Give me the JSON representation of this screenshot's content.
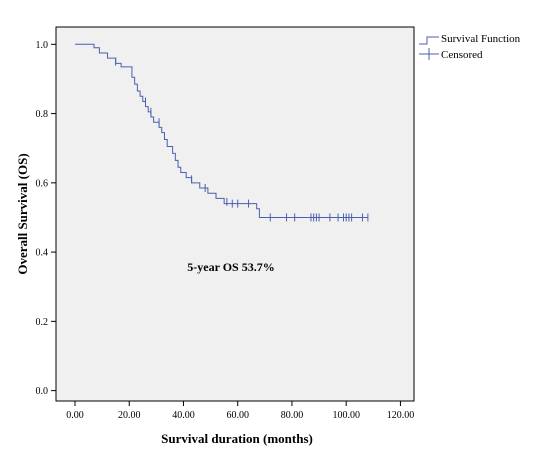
{
  "chart_data": {
    "type": "line",
    "title": "",
    "xlabel": "Survival duration (months)",
    "ylabel": "Overall Survival (OS)",
    "xlim": [
      -7,
      125
    ],
    "ylim": [
      -0.03,
      1.05
    ],
    "x_ticks": [
      "0.00",
      "20.00",
      "40.00",
      "60.00",
      "80.00",
      "100.00",
      "120.00"
    ],
    "x_tick_values": [
      0,
      20,
      40,
      60,
      80,
      100,
      120
    ],
    "y_ticks": [
      "0.0",
      "0.2",
      "0.4",
      "0.6",
      "0.8",
      "1.0"
    ],
    "y_tick_values": [
      0,
      0.2,
      0.4,
      0.6,
      0.8,
      1.0
    ],
    "grid": false,
    "legend_position": "top-right, outside plot",
    "colors": {
      "line": "#4a5fb0",
      "plot_bg": "#f0f0f0"
    },
    "annotation": "5-year OS 53.7%",
    "series": [
      {
        "name": "Survival Function",
        "type": "step",
        "points": [
          [
            0,
            1.0
          ],
          [
            7,
            1.0
          ],
          [
            7,
            0.99
          ],
          [
            9,
            0.99
          ],
          [
            9,
            0.975
          ],
          [
            12,
            0.975
          ],
          [
            12,
            0.96
          ],
          [
            15,
            0.96
          ],
          [
            15,
            0.945
          ],
          [
            17,
            0.945
          ],
          [
            17,
            0.935
          ],
          [
            21,
            0.935
          ],
          [
            21,
            0.905
          ],
          [
            22,
            0.905
          ],
          [
            22,
            0.885
          ],
          [
            23,
            0.885
          ],
          [
            23,
            0.865
          ],
          [
            24,
            0.865
          ],
          [
            24,
            0.85
          ],
          [
            25,
            0.85
          ],
          [
            25,
            0.835
          ],
          [
            26,
            0.835
          ],
          [
            26,
            0.82
          ],
          [
            27,
            0.82
          ],
          [
            27,
            0.805
          ],
          [
            28,
            0.805
          ],
          [
            28,
            0.79
          ],
          [
            29,
            0.79
          ],
          [
            29,
            0.775
          ],
          [
            31,
            0.775
          ],
          [
            31,
            0.76
          ],
          [
            32,
            0.76
          ],
          [
            32,
            0.745
          ],
          [
            33,
            0.745
          ],
          [
            33,
            0.725
          ],
          [
            34,
            0.725
          ],
          [
            34,
            0.705
          ],
          [
            36,
            0.705
          ],
          [
            36,
            0.685
          ],
          [
            37,
            0.685
          ],
          [
            37,
            0.665
          ],
          [
            38,
            0.665
          ],
          [
            38,
            0.645
          ],
          [
            39,
            0.645
          ],
          [
            39,
            0.63
          ],
          [
            41,
            0.63
          ],
          [
            41,
            0.615
          ],
          [
            43,
            0.615
          ],
          [
            43,
            0.6
          ],
          [
            46,
            0.6
          ],
          [
            46,
            0.585
          ],
          [
            49,
            0.585
          ],
          [
            49,
            0.57
          ],
          [
            52,
            0.57
          ],
          [
            52,
            0.555
          ],
          [
            55,
            0.555
          ],
          [
            55,
            0.54
          ],
          [
            67,
            0.54
          ],
          [
            67,
            0.525
          ],
          [
            68,
            0.525
          ],
          [
            68,
            0.5
          ],
          [
            108,
            0.5
          ]
        ]
      },
      {
        "name": "Censored",
        "type": "marker",
        "marker": "+",
        "points": [
          [
            15,
            0.95
          ],
          [
            26,
            0.835
          ],
          [
            28,
            0.805
          ],
          [
            31,
            0.775
          ],
          [
            43,
            0.61
          ],
          [
            48,
            0.585
          ],
          [
            56,
            0.545
          ],
          [
            58,
            0.54
          ],
          [
            60,
            0.54
          ],
          [
            64,
            0.54
          ],
          [
            72,
            0.5
          ],
          [
            78,
            0.5
          ],
          [
            81,
            0.5
          ],
          [
            87,
            0.5
          ],
          [
            88,
            0.5
          ],
          [
            89,
            0.5
          ],
          [
            90,
            0.5
          ],
          [
            94,
            0.5
          ],
          [
            97,
            0.5
          ],
          [
            99,
            0.5
          ],
          [
            100,
            0.5
          ],
          [
            101,
            0.5
          ],
          [
            102,
            0.5
          ],
          [
            106,
            0.5
          ],
          [
            108,
            0.5
          ]
        ]
      }
    ]
  }
}
